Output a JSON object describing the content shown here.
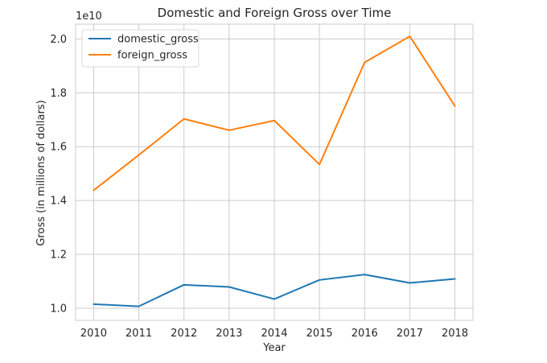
{
  "chart_data": {
    "type": "line",
    "title": "Domestic and Foreign Gross over Time",
    "xlabel": "Year",
    "ylabel": "Gross (in millions of dollars)",
    "y_offset_label": "1e10",
    "x": [
      2010,
      2011,
      2012,
      2013,
      2014,
      2015,
      2016,
      2017,
      2018
    ],
    "x_tick_labels": [
      "2010",
      "2011",
      "2012",
      "2013",
      "2014",
      "2015",
      "2016",
      "2017",
      "2018"
    ],
    "y_tick_values": [
      1.0,
      1.2,
      1.4,
      1.6,
      1.8,
      2.0
    ],
    "y_tick_labels": [
      "1.0",
      "1.2",
      "1.4",
      "1.6",
      "1.8",
      "2.0"
    ],
    "xlim": [
      2009.6,
      2018.4
    ],
    "ylim": [
      0.955,
      2.055
    ],
    "grid": true,
    "legend_position": "top-left",
    "series": [
      {
        "name": "domestic_gross",
        "color": "#1f77b4",
        "values": [
          1.015,
          1.007,
          1.087,
          1.079,
          1.034,
          1.105,
          1.125,
          1.094,
          1.109
        ]
      },
      {
        "name": "foreign_gross",
        "color": "#ff7f0e",
        "values": [
          1.438,
          1.569,
          1.703,
          1.661,
          1.697,
          1.534,
          1.913,
          2.01,
          1.751
        ]
      }
    ]
  }
}
